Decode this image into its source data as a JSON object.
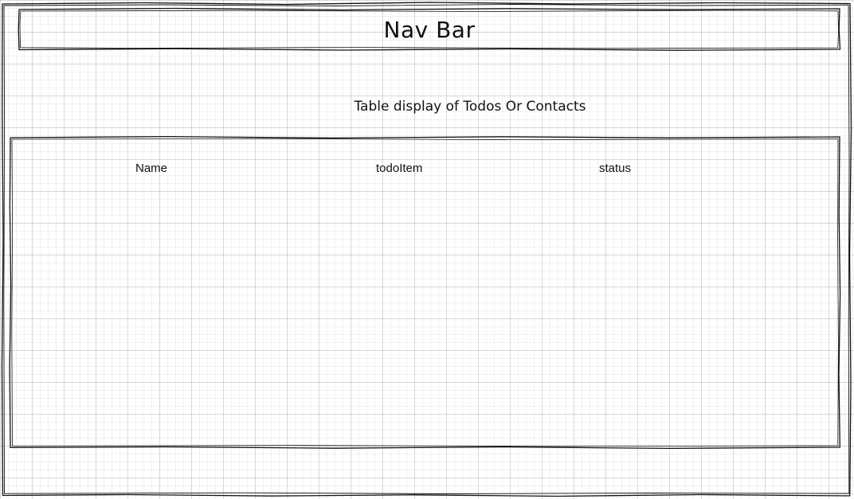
{
  "navbar": {
    "title": "Nav Bar"
  },
  "table": {
    "caption": "Table display of Todos Or Contacts",
    "columns": [
      "Name",
      "todoItem",
      "status"
    ],
    "rows": []
  },
  "style": {
    "stroke_color": "#111111",
    "grid_color": "#e3e3e3"
  }
}
